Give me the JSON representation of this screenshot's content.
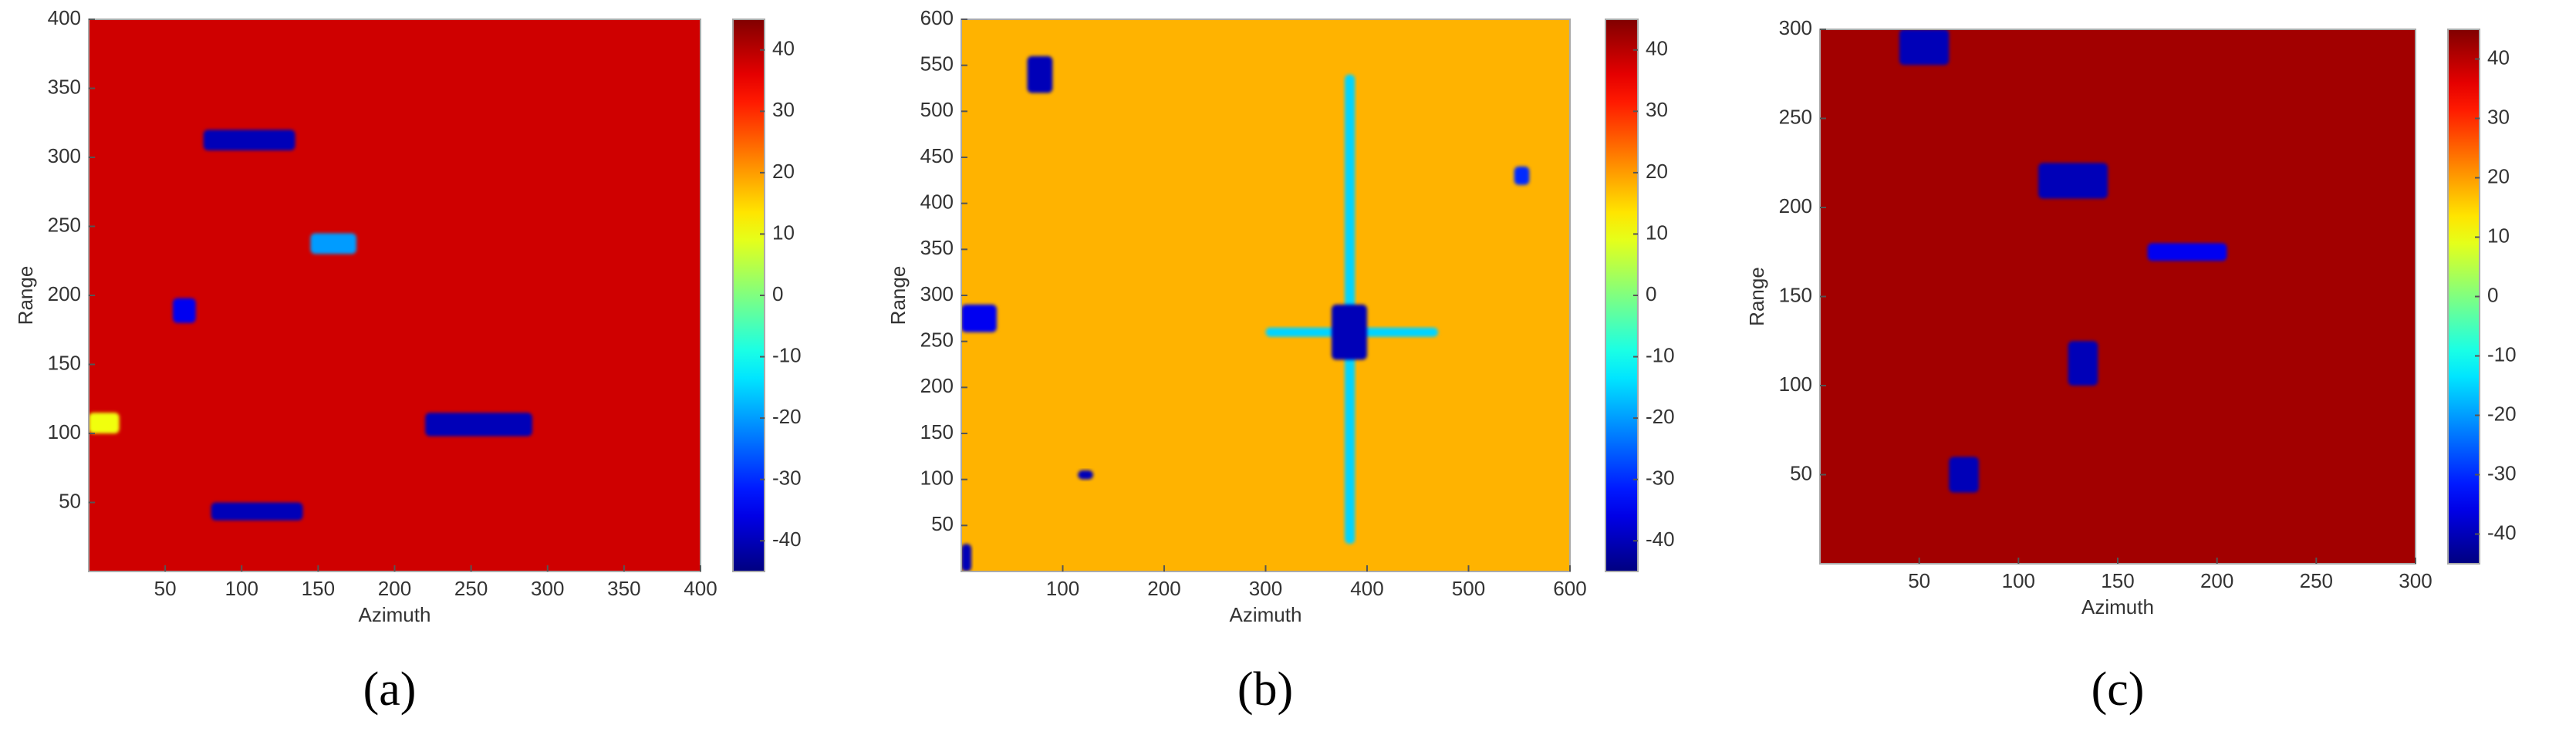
{
  "chart_data": [
    {
      "type": "heatmap",
      "panel_label": "(a)",
      "xlabel": "Azimuth",
      "ylabel": "Range",
      "colormap": "jet",
      "xlim": [
        0,
        400
      ],
      "ylim": [
        0,
        400
      ],
      "xticks": [
        50,
        100,
        150,
        200,
        250,
        300,
        350,
        400
      ],
      "yticks": [
        50,
        100,
        150,
        200,
        250,
        300,
        350,
        400
      ],
      "clim": [
        -45,
        45
      ],
      "colorbar_ticks": [
        -40,
        -30,
        -20,
        -10,
        0,
        10,
        20,
        30,
        40
      ],
      "background": 38,
      "patches": [
        {
          "xrange": [
            75,
            135
          ],
          "yrange": [
            305,
            320
          ],
          "value": -40
        },
        {
          "xrange": [
            145,
            175
          ],
          "yrange": [
            230,
            245
          ],
          "value": -20
        },
        {
          "xrange": [
            55,
            70
          ],
          "yrange": [
            180,
            198
          ],
          "value": -35
        },
        {
          "xrange": [
            220,
            290
          ],
          "yrange": [
            98,
            115
          ],
          "value": -40
        },
        {
          "xrange": [
            80,
            140
          ],
          "yrange": [
            37,
            50
          ],
          "value": -40
        },
        {
          "xrange": [
            0,
            20
          ],
          "yrange": [
            100,
            115
          ],
          "value": 10
        }
      ]
    },
    {
      "type": "heatmap",
      "panel_label": "(b)",
      "xlabel": "Azimuth",
      "ylabel": "Range",
      "colormap": "jet",
      "xlim": [
        0,
        600
      ],
      "ylim": [
        0,
        600
      ],
      "xticks": [
        100,
        200,
        300,
        400,
        500,
        600
      ],
      "yticks": [
        50,
        100,
        150,
        200,
        250,
        300,
        350,
        400,
        450,
        500,
        550,
        600
      ],
      "clim": [
        -45,
        45
      ],
      "colorbar_ticks": [
        -40,
        -30,
        -20,
        -10,
        0,
        10,
        20,
        30,
        40
      ],
      "background": 18,
      "patches": [
        {
          "xrange": [
            378,
            388
          ],
          "yrange": [
            30,
            540
          ],
          "value": -15
        },
        {
          "xrange": [
            300,
            470
          ],
          "yrange": [
            255,
            265
          ],
          "value": -15
        },
        {
          "xrange": [
            365,
            400
          ],
          "yrange": [
            230,
            290
          ],
          "value": -40
        },
        {
          "xrange": [
            65,
            90
          ],
          "yrange": [
            520,
            560
          ],
          "value": -40
        },
        {
          "xrange": [
            0,
            35
          ],
          "yrange": [
            260,
            290
          ],
          "value": -35
        },
        {
          "xrange": [
            0,
            10
          ],
          "yrange": [
            0,
            30
          ],
          "value": -40
        },
        {
          "xrange": [
            115,
            130
          ],
          "yrange": [
            100,
            110
          ],
          "value": -40
        },
        {
          "xrange": [
            545,
            560
          ],
          "yrange": [
            420,
            440
          ],
          "value": -30
        }
      ]
    },
    {
      "type": "heatmap",
      "panel_label": "(c)",
      "xlabel": "Azimuth",
      "ylabel": "Range",
      "colormap": "jet",
      "xlim": [
        0,
        300
      ],
      "ylim": [
        0,
        300
      ],
      "xticks": [
        50,
        100,
        150,
        200,
        250,
        300
      ],
      "yticks": [
        50,
        100,
        150,
        200,
        250,
        300
      ],
      "clim": [
        -45,
        45
      ],
      "colorbar_ticks": [
        -40,
        -30,
        -20,
        -10,
        0,
        10,
        20,
        30,
        40
      ],
      "background": 42,
      "patches": [
        {
          "xrange": [
            40,
            65
          ],
          "yrange": [
            280,
            300
          ],
          "value": -40
        },
        {
          "xrange": [
            110,
            145
          ],
          "yrange": [
            205,
            225
          ],
          "value": -40
        },
        {
          "xrange": [
            165,
            205
          ],
          "yrange": [
            170,
            180
          ],
          "value": -35
        },
        {
          "xrange": [
            125,
            140
          ],
          "yrange": [
            100,
            125
          ],
          "value": -40
        },
        {
          "xrange": [
            65,
            80
          ],
          "yrange": [
            40,
            60
          ],
          "value": -40
        }
      ]
    }
  ]
}
